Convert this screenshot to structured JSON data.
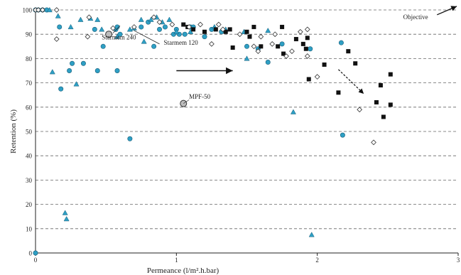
{
  "chart_data": {
    "type": "scatter",
    "xlabel": "Permeance (l/m².h.bar)",
    "ylabel": "Retention (%)",
    "xlim": [
      0,
      3
    ],
    "ylim": [
      0,
      100
    ],
    "x_ticks": [
      "0",
      "1",
      "2",
      "3"
    ],
    "y_ticks": [
      "0",
      "10",
      "20",
      "30",
      "40",
      "50",
      "60",
      "70",
      "80",
      "90",
      "100"
    ],
    "grid": "horizontal dashed",
    "series": [
      {
        "marker": "circle",
        "color": "#2e9fc4",
        "points": [
          [
            0,
            100
          ],
          [
            0.02,
            100
          ],
          [
            0.05,
            100
          ],
          [
            0.08,
            100
          ],
          [
            0.17,
            93
          ],
          [
            0.18,
            67.5
          ],
          [
            0.24,
            75
          ],
          [
            0.26,
            78
          ],
          [
            0.34,
            78
          ],
          [
            0.42,
            92
          ],
          [
            0.44,
            75
          ],
          [
            0.48,
            85
          ],
          [
            0.52,
            90
          ],
          [
            0.57,
            92
          ],
          [
            0.58,
            93
          ],
          [
            0.58,
            75
          ],
          [
            0.6,
            90
          ],
          [
            0.67,
            47
          ],
          [
            0.75,
            93
          ],
          [
            0.8,
            95
          ],
          [
            0.84,
            85
          ],
          [
            0.88,
            92
          ],
          [
            0.92,
            93
          ],
          [
            0.98,
            90
          ],
          [
            1.0,
            92
          ],
          [
            1.02,
            90
          ],
          [
            1.06,
            90
          ],
          [
            1.1,
            93
          ],
          [
            1.12,
            93
          ],
          [
            1.2,
            89
          ],
          [
            1.25,
            92
          ],
          [
            1.32,
            91
          ],
          [
            1.5,
            85
          ],
          [
            1.58,
            84
          ],
          [
            1.65,
            78.5
          ],
          [
            1.75,
            86
          ],
          [
            1.95,
            84
          ],
          [
            2.17,
            86.5
          ],
          [
            2.18,
            48.5
          ],
          [
            0,
            0
          ]
        ]
      },
      {
        "marker": "triangle",
        "color": "#2e9fc4",
        "points": [
          [
            0.1,
            100
          ],
          [
            0.12,
            74.5
          ],
          [
            0.16,
            97.5
          ],
          [
            0.21,
            16.5
          ],
          [
            0.22,
            14
          ],
          [
            0.25,
            93
          ],
          [
            0.29,
            69.5
          ],
          [
            0.32,
            96
          ],
          [
            0.39,
            96.5
          ],
          [
            0.44,
            96
          ],
          [
            0.47,
            92
          ],
          [
            0.52,
            90
          ],
          [
            0.58,
            89
          ],
          [
            0.67,
            92
          ],
          [
            0.7,
            92.5
          ],
          [
            0.75,
            96
          ],
          [
            0.77,
            87
          ],
          [
            0.82,
            96
          ],
          [
            0.86,
            97
          ],
          [
            0.9,
            95
          ],
          [
            0.95,
            96
          ],
          [
            1.0,
            91
          ],
          [
            1.1,
            91
          ],
          [
            1.27,
            93
          ],
          [
            1.35,
            92
          ],
          [
            1.48,
            91
          ],
          [
            1.5,
            80
          ],
          [
            1.65,
            91.5
          ],
          [
            1.83,
            58
          ],
          [
            1.96,
            7.5
          ]
        ]
      },
      {
        "marker": "square",
        "color": "#111111",
        "points": [
          [
            1.05,
            94
          ],
          [
            1.08,
            93
          ],
          [
            1.12,
            92
          ],
          [
            1.2,
            91
          ],
          [
            1.28,
            92
          ],
          [
            1.35,
            91
          ],
          [
            1.38,
            92
          ],
          [
            1.4,
            84.5
          ],
          [
            1.5,
            91
          ],
          [
            1.52,
            89
          ],
          [
            1.55,
            93
          ],
          [
            1.6,
            85
          ],
          [
            1.72,
            85
          ],
          [
            1.75,
            93
          ],
          [
            1.76,
            82
          ],
          [
            1.85,
            88
          ],
          [
            1.9,
            86
          ],
          [
            1.92,
            84
          ],
          [
            1.93,
            88.5
          ],
          [
            1.94,
            71.5
          ],
          [
            2.05,
            77.5
          ],
          [
            2.15,
            66
          ],
          [
            2.22,
            83
          ],
          [
            2.27,
            78
          ],
          [
            2.42,
            62
          ],
          [
            2.45,
            69
          ],
          [
            2.47,
            56
          ],
          [
            2.52,
            73.5
          ],
          [
            2.52,
            61
          ]
        ]
      },
      {
        "marker": "diamond",
        "color": "#ffffff",
        "points": [
          [
            0.0,
            100
          ],
          [
            0.02,
            100
          ],
          [
            0.05,
            100
          ],
          [
            0.15,
            100
          ],
          [
            0.15,
            88
          ],
          [
            0.37,
            89
          ],
          [
            0.38,
            97
          ],
          [
            0.55,
            92.5
          ],
          [
            0.7,
            93
          ],
          [
            0.84,
            97
          ],
          [
            0.88,
            95
          ],
          [
            0.97,
            94
          ],
          [
            1.09,
            93
          ],
          [
            1.17,
            94
          ],
          [
            1.25,
            86
          ],
          [
            1.3,
            94
          ],
          [
            1.33,
            92
          ],
          [
            1.45,
            90
          ],
          [
            1.55,
            85
          ],
          [
            1.58,
            83
          ],
          [
            1.6,
            89
          ],
          [
            1.68,
            86
          ],
          [
            1.7,
            90
          ],
          [
            1.78,
            81
          ],
          [
            1.82,
            83
          ],
          [
            1.88,
            91
          ],
          [
            1.93,
            81
          ],
          [
            1.93,
            92
          ],
          [
            2.0,
            72.5
          ],
          [
            2.3,
            59
          ],
          [
            2.4,
            45.5
          ]
        ]
      },
      {
        "marker": "circle-grey",
        "color": "#bdbdbd",
        "points": [
          [
            0.52,
            90
          ],
          [
            1.05,
            61.5
          ]
        ]
      }
    ],
    "annotations": [
      {
        "text": "Starmem 240",
        "x": 0.52,
        "y": 90
      },
      {
        "text": "Starmem 120",
        "x": 0.64,
        "y": 91
      },
      {
        "text": "MPF-50",
        "x": 1.05,
        "y": 61.5
      },
      {
        "text": "Objective",
        "x": 2.92,
        "y": 100
      }
    ]
  }
}
